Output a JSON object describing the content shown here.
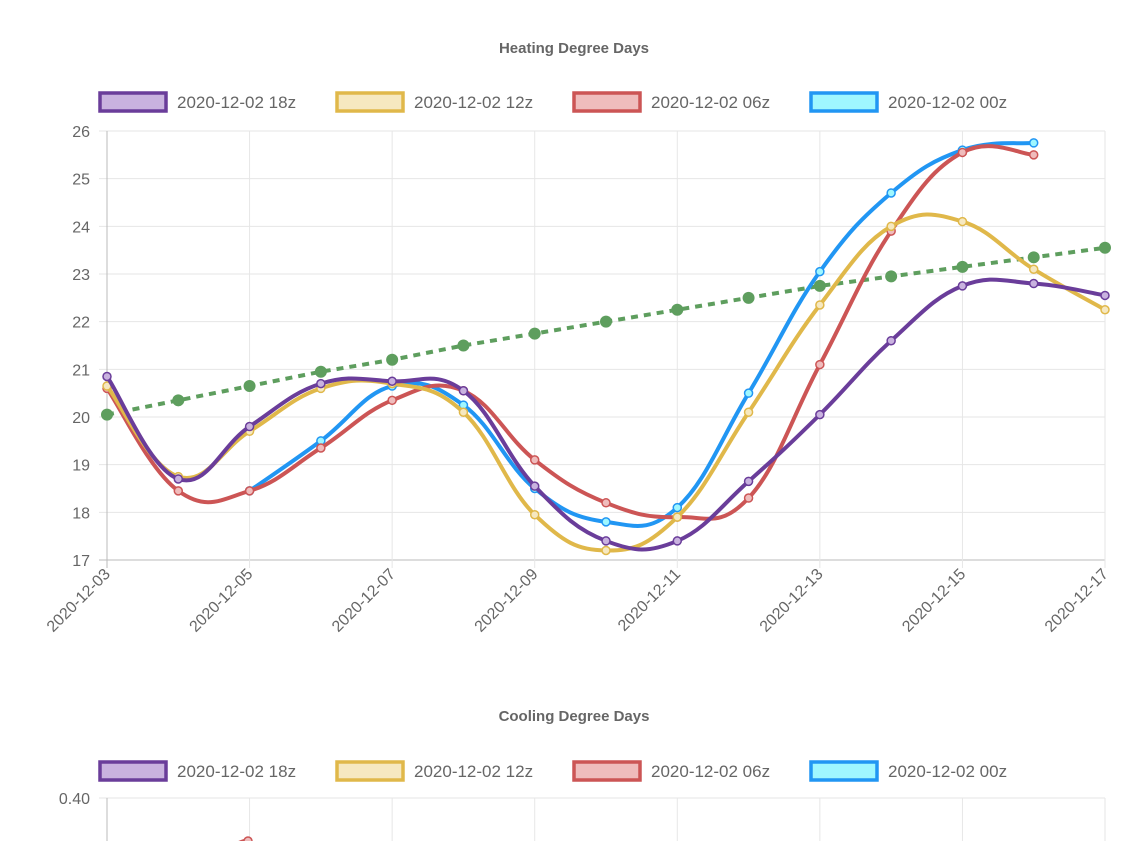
{
  "chart_data": [
    {
      "type": "line",
      "title": "Heating Degree Days",
      "ylim": [
        17,
        26
      ],
      "y_ticks": [
        "17",
        "18",
        "19",
        "20",
        "21",
        "22",
        "23",
        "24",
        "25",
        "26"
      ],
      "x_ticks": [
        "2020-12-03",
        "2020-12-05",
        "2020-12-07",
        "2020-12-09",
        "2020-12-11",
        "2020-12-13",
        "2020-12-15",
        "2020-12-17"
      ],
      "x": [
        "2020-12-03",
        "2020-12-04",
        "2020-12-05",
        "2020-12-06",
        "2020-12-07",
        "2020-12-08",
        "2020-12-09",
        "2020-12-10",
        "2020-12-11",
        "2020-12-12",
        "2020-12-13",
        "2020-12-14",
        "2020-12-15",
        "2020-12-16",
        "2020-12-17"
      ],
      "legend_position": "top",
      "grid": true,
      "series": [
        {
          "name": "2020-12-02 18z",
          "color": "#6a3d9a",
          "fill": "#c9b2df",
          "values": [
            20.85,
            18.7,
            19.8,
            20.7,
            20.75,
            20.55,
            18.55,
            17.4,
            17.4,
            18.65,
            20.05,
            21.6,
            22.75,
            22.8,
            22.55
          ]
        },
        {
          "name": "2020-12-02 12z",
          "color": "#e0b84a",
          "fill": "#f6e8c0",
          "values": [
            20.65,
            18.75,
            19.7,
            20.6,
            20.7,
            20.1,
            17.95,
            17.2,
            17.9,
            20.1,
            22.35,
            24.0,
            24.1,
            23.1,
            22.25
          ]
        },
        {
          "name": "2020-12-02 06z",
          "color": "#cc5555",
          "fill": "#efbcbc",
          "values": [
            20.6,
            18.45,
            18.45,
            19.35,
            20.35,
            20.55,
            19.1,
            18.2,
            17.9,
            18.3,
            21.1,
            23.9,
            25.55,
            25.5,
            null
          ]
        },
        {
          "name": "2020-12-02 00z",
          "color": "#2196f3",
          "fill": "#9ff7ff",
          "values": [
            null,
            null,
            18.45,
            19.5,
            20.65,
            20.25,
            18.5,
            17.8,
            18.1,
            20.5,
            23.05,
            24.7,
            25.6,
            25.75,
            null
          ]
        },
        {
          "color": "#5e9e5e",
          "dashed": true,
          "values": [
            20.05,
            20.35,
            20.65,
            20.95,
            21.2,
            21.5,
            21.75,
            22.0,
            22.25,
            22.5,
            22.75,
            22.95,
            23.15,
            23.35,
            23.55
          ]
        }
      ]
    },
    {
      "type": "line",
      "title": "Cooling Degree Days",
      "y_ticks": [
        "0.40"
      ],
      "legend_position": "top",
      "grid": true,
      "series_names": [
        "2020-12-02 18z",
        "2020-12-02 12z",
        "2020-12-02 06z",
        "2020-12-02 00z"
      ]
    }
  ]
}
